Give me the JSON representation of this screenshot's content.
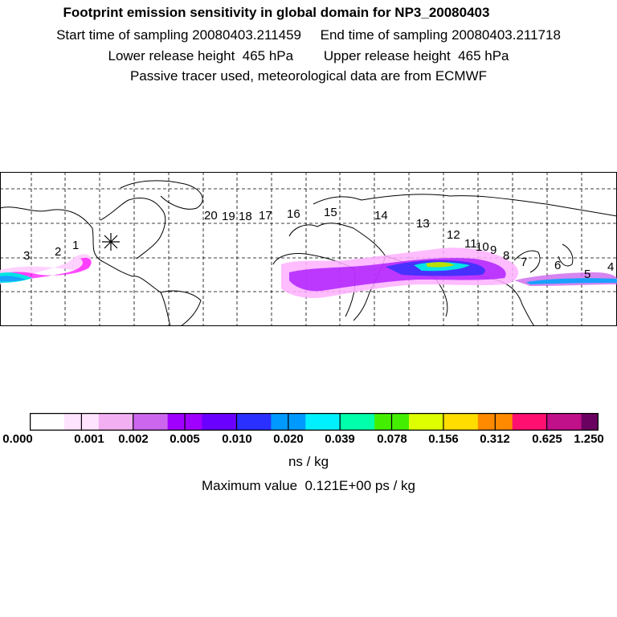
{
  "header": {
    "title": "Footprint emission sensitivity in global domain for NP3_20080403",
    "sampling": "Start time of sampling 20080403.211459     End time of sampling 20080403.211718",
    "release": "Lower release height  465 hPa        Upper release height  465 hPa",
    "tracer": "Passive tracer used, meteorological data are from ECMWF"
  },
  "map": {
    "release_marker": "release-site-asterisk",
    "track_labels": [
      "1",
      "2",
      "3",
      "4",
      "5",
      "6",
      "7",
      "8",
      "9",
      "10",
      "11",
      "12",
      "13",
      "14",
      "15",
      "16",
      "17",
      "18",
      "19",
      "20"
    ],
    "plume_colors": [
      "#00e5e5",
      "#1aa0ff",
      "#8a2be2",
      "#ff00ff",
      "#b8e000"
    ]
  },
  "colorbar": {
    "colors": [
      "#ffffff",
      "#ffe4ff",
      "#f2b0f2",
      "#cc66ee",
      "#a000ff",
      "#6a00ff",
      "#2a30ff",
      "#0099ff",
      "#00f0ff",
      "#00ffaa",
      "#44ee00",
      "#ddff00",
      "#ffdd00",
      "#ff8a00",
      "#ff1070",
      "#c0108a",
      "#6a0060"
    ],
    "ticks": [
      "0.000",
      "0.001",
      "0.002",
      "0.005",
      "0.010",
      "0.020",
      "0.039",
      "0.078",
      "0.156",
      "0.312",
      "0.625",
      "1.250"
    ],
    "unit": "ns / kg"
  },
  "footer": {
    "max_value": "Maximum value  0.121E+00 ps / kg"
  }
}
